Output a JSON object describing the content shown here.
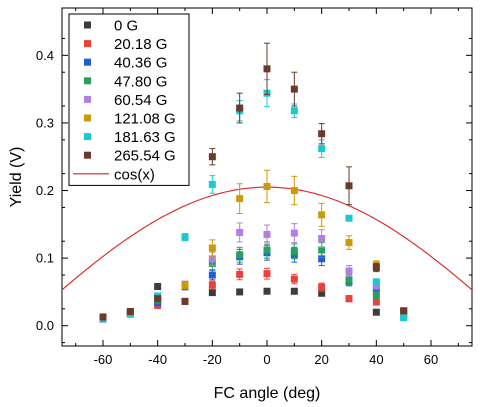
{
  "chart_data": {
    "type": "scatter",
    "xlabel": "FC angle (deg)",
    "ylabel": "Yield (V)",
    "xlim": [
      -75,
      75
    ],
    "ylim": [
      -0.03,
      0.47
    ],
    "xticks": [
      -60,
      -40,
      -20,
      0,
      20,
      40,
      60
    ],
    "yticks": [
      0.0,
      0.1,
      0.2,
      0.3,
      0.4
    ],
    "xtick_labels": [
      "-60",
      "-40",
      "-20",
      "0",
      "20",
      "40",
      "60"
    ],
    "ytick_labels": [
      "0.0",
      "0.1",
      "0.2",
      "0.3",
      "0.4"
    ],
    "grid": false,
    "legend_position": "top-left",
    "series": [
      {
        "name": "0 G",
        "color": "#3d3d3d",
        "marker": "square",
        "x": [
          -60,
          -50,
          -40,
          -30,
          -20,
          -10,
          0,
          10,
          20,
          30,
          40,
          50
        ],
        "y": [
          0.01,
          0.018,
          0.058,
          0.131,
          0.049,
          0.05,
          0.051,
          0.051,
          0.048,
          0.04,
          0.02,
          0.02
        ],
        "err": [
          0.004,
          0.004,
          0.004,
          0.005,
          0.004,
          0.004,
          0.004,
          0.004,
          0.004,
          0.004,
          0.003,
          0.004
        ]
      },
      {
        "name": "20.18 G",
        "color": "#e8423c",
        "marker": "square",
        "x": [
          -60,
          -50,
          -40,
          -30,
          -20,
          -10,
          0,
          10,
          20,
          30,
          40,
          50
        ],
        "y": [
          0.01,
          0.02,
          0.03,
          0.036,
          0.06,
          0.076,
          0.077,
          0.069,
          0.057,
          0.04,
          0.035,
          0.022
        ],
        "err": [
          0.004,
          0.004,
          0.004,
          0.004,
          0.006,
          0.008,
          0.008,
          0.007,
          0.006,
          0.004,
          0.004,
          0.004
        ]
      },
      {
        "name": "40.36 G",
        "color": "#1f5fd6",
        "marker": "square",
        "x": [
          -60,
          -50,
          -40,
          -30,
          -20,
          -10,
          0,
          10,
          20,
          30,
          40,
          50
        ],
        "y": [
          0.01,
          0.018,
          0.034,
          0.058,
          0.075,
          0.102,
          0.108,
          0.105,
          0.099,
          0.065,
          0.055,
          0.016
        ],
        "err": [
          0.004,
          0.004,
          0.004,
          0.005,
          0.007,
          0.011,
          0.011,
          0.011,
          0.01,
          0.006,
          0.005,
          0.004
        ]
      },
      {
        "name": "47.80 G",
        "color": "#2aa060",
        "marker": "square",
        "x": [
          -60,
          -50,
          -40,
          -30,
          -20,
          -10,
          0,
          10,
          20,
          30,
          40,
          50
        ],
        "y": [
          0.011,
          0.018,
          0.038,
          0.059,
          0.092,
          0.105,
          0.112,
          0.11,
          0.112,
          0.068,
          0.045,
          0.018
        ],
        "err": [
          0.004,
          0.004,
          0.004,
          0.005,
          0.009,
          0.011,
          0.012,
          0.011,
          0.011,
          0.007,
          0.005,
          0.004
        ]
      },
      {
        "name": "60.54 G",
        "color": "#b07fe0",
        "marker": "square",
        "x": [
          -60,
          -50,
          -40,
          -30,
          -20,
          -10,
          0,
          10,
          20,
          30,
          40,
          50
        ],
        "y": [
          0.011,
          0.02,
          0.044,
          0.061,
          0.099,
          0.138,
          0.135,
          0.137,
          0.129,
          0.081,
          0.06,
          0.015
        ],
        "err": [
          0.004,
          0.004,
          0.004,
          0.005,
          0.01,
          0.014,
          0.014,
          0.014,
          0.013,
          0.008,
          0.006,
          0.004
        ]
      },
      {
        "name": "121.08 G",
        "color": "#c99a0a",
        "marker": "square",
        "x": [
          -60,
          -50,
          -40,
          -30,
          -20,
          -10,
          0,
          10,
          20,
          30,
          40,
          50
        ],
        "y": [
          0.012,
          0.019,
          0.041,
          0.06,
          0.115,
          0.188,
          0.206,
          0.2,
          0.164,
          0.123,
          0.09,
          0.022
        ],
        "err": [
          0.004,
          0.004,
          0.004,
          0.005,
          0.012,
          0.022,
          0.024,
          0.021,
          0.017,
          0.01,
          0.006,
          0.004
        ]
      },
      {
        "name": "181.63 G",
        "color": "#18c9d2",
        "marker": "square",
        "x": [
          -60,
          -50,
          -40,
          -30,
          -20,
          -10,
          0,
          10,
          20,
          30,
          40,
          50
        ],
        "y": [
          0.012,
          0.017,
          0.044,
          0.131,
          0.209,
          0.318,
          0.344,
          0.318,
          0.262,
          0.159,
          0.065,
          0.012
        ],
        "err": [
          0.004,
          0.004,
          0.004,
          0.005,
          0.013,
          0.015,
          0.02,
          0.01,
          0.013,
          0.004,
          0.004,
          0.004
        ]
      },
      {
        "name": "265.54 G",
        "color": "#6a3a2c",
        "marker": "square",
        "x": [
          -60,
          -50,
          -40,
          -30,
          -20,
          -10,
          0,
          10,
          20,
          30,
          40,
          50
        ],
        "y": [
          0.013,
          0.021,
          0.04,
          0.036,
          0.25,
          0.322,
          0.38,
          0.35,
          0.284,
          0.207,
          0.086,
          0.022
        ],
        "err": [
          0.004,
          0.004,
          0.004,
          0.004,
          0.012,
          0.022,
          0.038,
          0.025,
          0.015,
          0.028,
          0.006,
          0.004
        ]
      }
    ],
    "curve": {
      "name": "cos(x)",
      "color": "#dd2222",
      "amplitude": 0.205,
      "x_range": [
        -75,
        75
      ]
    }
  }
}
